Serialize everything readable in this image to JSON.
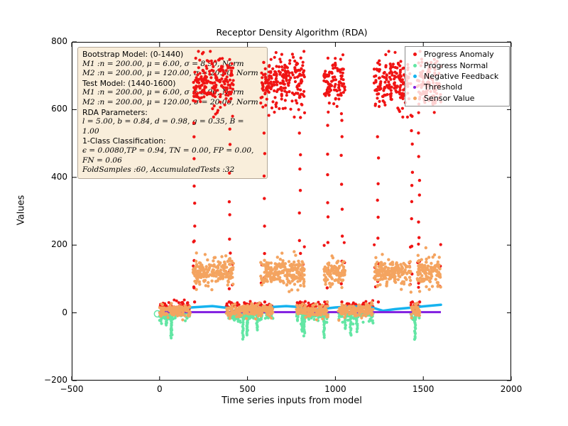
{
  "figure": {
    "title": "Receptor Density Algorithm (RDA)",
    "xlabel": "Time series inputs from model",
    "ylabel": "Values"
  },
  "info_box": {
    "lines": [
      {
        "text": "Bootstrap Model: (0-1440)",
        "style": "sans"
      },
      {
        "text": "M1 :n = 200.00, μ = 6.00, σ = 8.90, Norm",
        "style": "math"
      },
      {
        "text": "M2 :n = 200.00, μ = 120.00, σ = 20.00, Norm",
        "style": "math"
      },
      {
        "text": "Test Model: (1440-1600)",
        "style": "sans"
      },
      {
        "text": "M1 :n = 200.00, μ = 6.00, σ = 8.90, Norm",
        "style": "math"
      },
      {
        "text": "M2 :n = 200.00, μ = 120.00, σ = 20.00, Norm",
        "style": "math"
      },
      {
        "text": "RDA Parameters:",
        "style": "sans"
      },
      {
        "text": "l = 5.00, b = 0.84, d = 0.98, g = 0.35, B = 1.00",
        "style": "math"
      },
      {
        "text": "1-Class Classification:",
        "style": "sans"
      },
      {
        "text": "ϵ = 0.0080,TP = 0.94, TN = 0.00, FP = 0.00, FN = 0.06",
        "style": "math"
      },
      {
        "text": "FoldSamples :60, AccumulatedTests :32",
        "style": "math"
      }
    ]
  },
  "legend": {
    "items": [
      {
        "label": "Progress Anomaly",
        "color": "#f01414",
        "size": 5
      },
      {
        "label": "Progress Normal",
        "color": "#63e6a4",
        "size": 5
      },
      {
        "label": "Negative Feedback",
        "color": "#16b3ef",
        "size": 5
      },
      {
        "label": "Threshold",
        "color": "#811fe0",
        "size": 4
      },
      {
        "label": "Sensor Value",
        "color": "#f4a460",
        "size": 5
      }
    ]
  },
  "chart_data": {
    "type": "scatter",
    "title": "Receptor Density Algorithm (RDA)",
    "xlabel": "Time series inputs from model",
    "ylabel": "Values",
    "xlim": [
      -500,
      2000
    ],
    "ylim": [
      -200,
      800
    ],
    "x_ticks": {
      "values": [
        -500,
        0,
        500,
        1000,
        1500,
        2000
      ],
      "labels": [
        "−500",
        "0",
        "500",
        "1000",
        "1500",
        "2000"
      ]
    },
    "y_ticks": {
      "values": [
        -200,
        0,
        200,
        400,
        600,
        800
      ],
      "labels": [
        "−200",
        "0",
        "200",
        "400",
        "600",
        "800"
      ]
    },
    "series_names": [
      "Progress Anomaly",
      "Progress Normal",
      "Negative Feedback",
      "Threshold",
      "Sensor Value"
    ],
    "colors": {
      "progress_anomaly": "#f01414",
      "progress_normal": "#63e6a4",
      "negative_feedback": "#16b3ef",
      "threshold": "#811fe0",
      "sensor_value": "#f4a460"
    },
    "data_x_range": [
      0,
      1600
    ],
    "segments": [
      {
        "type": "normal",
        "x0": 0,
        "x1": 175
      },
      {
        "type": "anomaly",
        "x0": 190,
        "x1": 420
      },
      {
        "type": "normal",
        "x0": 378,
        "x1": 645
      },
      {
        "type": "anomaly",
        "x0": 575,
        "x1": 825
      },
      {
        "type": "normal",
        "x0": 778,
        "x1": 958
      },
      {
        "type": "anomaly",
        "x0": 935,
        "x1": 1055
      },
      {
        "type": "normal",
        "x0": 1016,
        "x1": 1215
      },
      {
        "type": "anomaly",
        "x0": 1220,
        "x1": 1430
      },
      {
        "type": "normal",
        "x0": 1428,
        "x1": 1480
      },
      {
        "type": "anomaly",
        "x0": 1465,
        "x1": 1600
      }
    ],
    "distributions": {
      "anomaly_progress_high": {
        "mean": 680,
        "sd": 38,
        "min": 578,
        "max": 772
      },
      "sensor_value_anomaly": {
        "mean": 120,
        "sd": 20,
        "min": 58,
        "max": 192
      },
      "sensor_value_normal": {
        "mean": 6,
        "sd": 9,
        "min": -22,
        "max": 32
      },
      "progress_anomaly_idle": {
        "mean": 19,
        "sd": 7,
        "min": 3,
        "max": 38
      },
      "progress_normal_drop": {
        "base": 3,
        "scale": 13,
        "tail_depth_max": 80
      }
    },
    "transition_trails_x": [
      198,
      399,
      597,
      798,
      956,
      1036,
      1242,
      1435,
      1476
    ],
    "corner_dot_values": [
      82,
      142,
      202
    ],
    "threshold_line": {
      "value": 2,
      "x_start": 0,
      "x_end": 1600
    },
    "negative_feedback_line": [
      [
        0,
        2
      ],
      [
        80,
        12
      ],
      [
        180,
        16
      ],
      [
        300,
        20
      ],
      [
        395,
        14
      ],
      [
        425,
        4
      ],
      [
        470,
        9
      ],
      [
        600,
        16
      ],
      [
        720,
        20
      ],
      [
        800,
        17
      ],
      [
        840,
        5
      ],
      [
        900,
        10
      ],
      [
        1000,
        16
      ],
      [
        1100,
        19
      ],
      [
        1200,
        17
      ],
      [
        1270,
        6
      ],
      [
        1340,
        11
      ],
      [
        1430,
        15
      ],
      [
        1500,
        19
      ],
      [
        1600,
        24
      ]
    ],
    "origin_marker": {
      "x": -12,
      "y": -3,
      "radius": 4.5
    }
  }
}
